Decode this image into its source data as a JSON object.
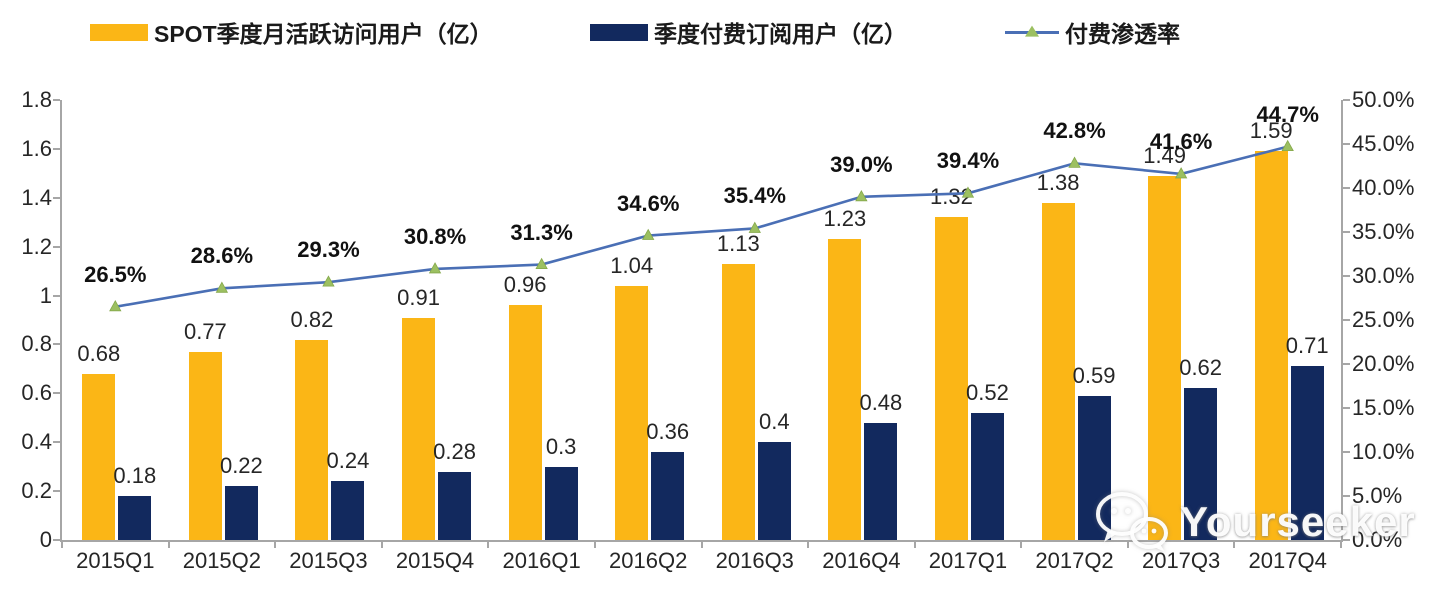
{
  "legend": {
    "items": [
      {
        "id": "mau",
        "label": "SPOT季度月活跃访问用户（亿）",
        "swatch": "bar",
        "color": "#FBB616"
      },
      {
        "id": "subs",
        "label": "季度付费订阅用户（亿）",
        "swatch": "bar",
        "color": "#12295E"
      },
      {
        "id": "rate",
        "label": "付费渗透率",
        "swatch": "line",
        "color": "#4A6FB5",
        "marker_color": "#9CC061"
      }
    ]
  },
  "watermark": {
    "text": "Yourseeker",
    "icon": "wechat-icon"
  },
  "chart_data": {
    "type": "combo",
    "categories": [
      "2015Q1",
      "2015Q2",
      "2015Q3",
      "2015Q4",
      "2016Q1",
      "2016Q2",
      "2016Q3",
      "2016Q4",
      "2017Q1",
      "2017Q2",
      "2017Q3",
      "2017Q4"
    ],
    "series": [
      {
        "name": "SPOT季度月活跃访问用户（亿）",
        "type": "bar",
        "axis": "left",
        "color": "#FBB616",
        "values": [
          0.68,
          0.77,
          0.82,
          0.91,
          0.96,
          1.04,
          1.13,
          1.23,
          1.32,
          1.38,
          1.49,
          1.59
        ],
        "labels": [
          "0.68",
          "0.77",
          "0.82",
          "0.91",
          "0.96",
          "1.04",
          "1.13",
          "1.23",
          "1.32",
          "1.38",
          "1.49",
          "1.59"
        ]
      },
      {
        "name": "季度付费订阅用户（亿）",
        "type": "bar",
        "axis": "left",
        "color": "#12295E",
        "values": [
          0.18,
          0.22,
          0.24,
          0.28,
          0.3,
          0.36,
          0.4,
          0.48,
          0.52,
          0.59,
          0.62,
          0.71
        ],
        "labels": [
          "0.18",
          "0.22",
          "0.24",
          "0.28",
          "0.3",
          "0.36",
          "0.4",
          "0.48",
          "0.52",
          "0.59",
          "0.62",
          "0.71"
        ]
      },
      {
        "name": "付费渗透率",
        "type": "line",
        "axis": "right",
        "color": "#4A6FB5",
        "marker": "triangle",
        "marker_color": "#9CC061",
        "values": [
          26.5,
          28.6,
          29.3,
          30.8,
          31.3,
          34.6,
          35.4,
          39.0,
          39.4,
          42.8,
          41.6,
          44.7
        ],
        "labels": [
          "26.5%",
          "28.6%",
          "29.3%",
          "30.8%",
          "31.3%",
          "34.6%",
          "35.4%",
          "39.0%",
          "39.4%",
          "42.8%",
          "41.6%",
          "44.7%"
        ]
      }
    ],
    "left_axis": {
      "min": 0,
      "max": 1.8,
      "tick_labels": [
        "0",
        "0.2",
        "0.4",
        "0.6",
        "0.8",
        "1",
        "1.2",
        "1.4",
        "1.6",
        "1.8"
      ]
    },
    "right_axis": {
      "min": 0,
      "max": 50,
      "tick_labels": [
        "0.0%",
        "5.0%",
        "10.0%",
        "15.0%",
        "20.0%",
        "25.0%",
        "30.0%",
        "35.0%",
        "40.0%",
        "45.0%",
        "50.0%"
      ]
    },
    "grid": false,
    "legend_position": "top"
  }
}
